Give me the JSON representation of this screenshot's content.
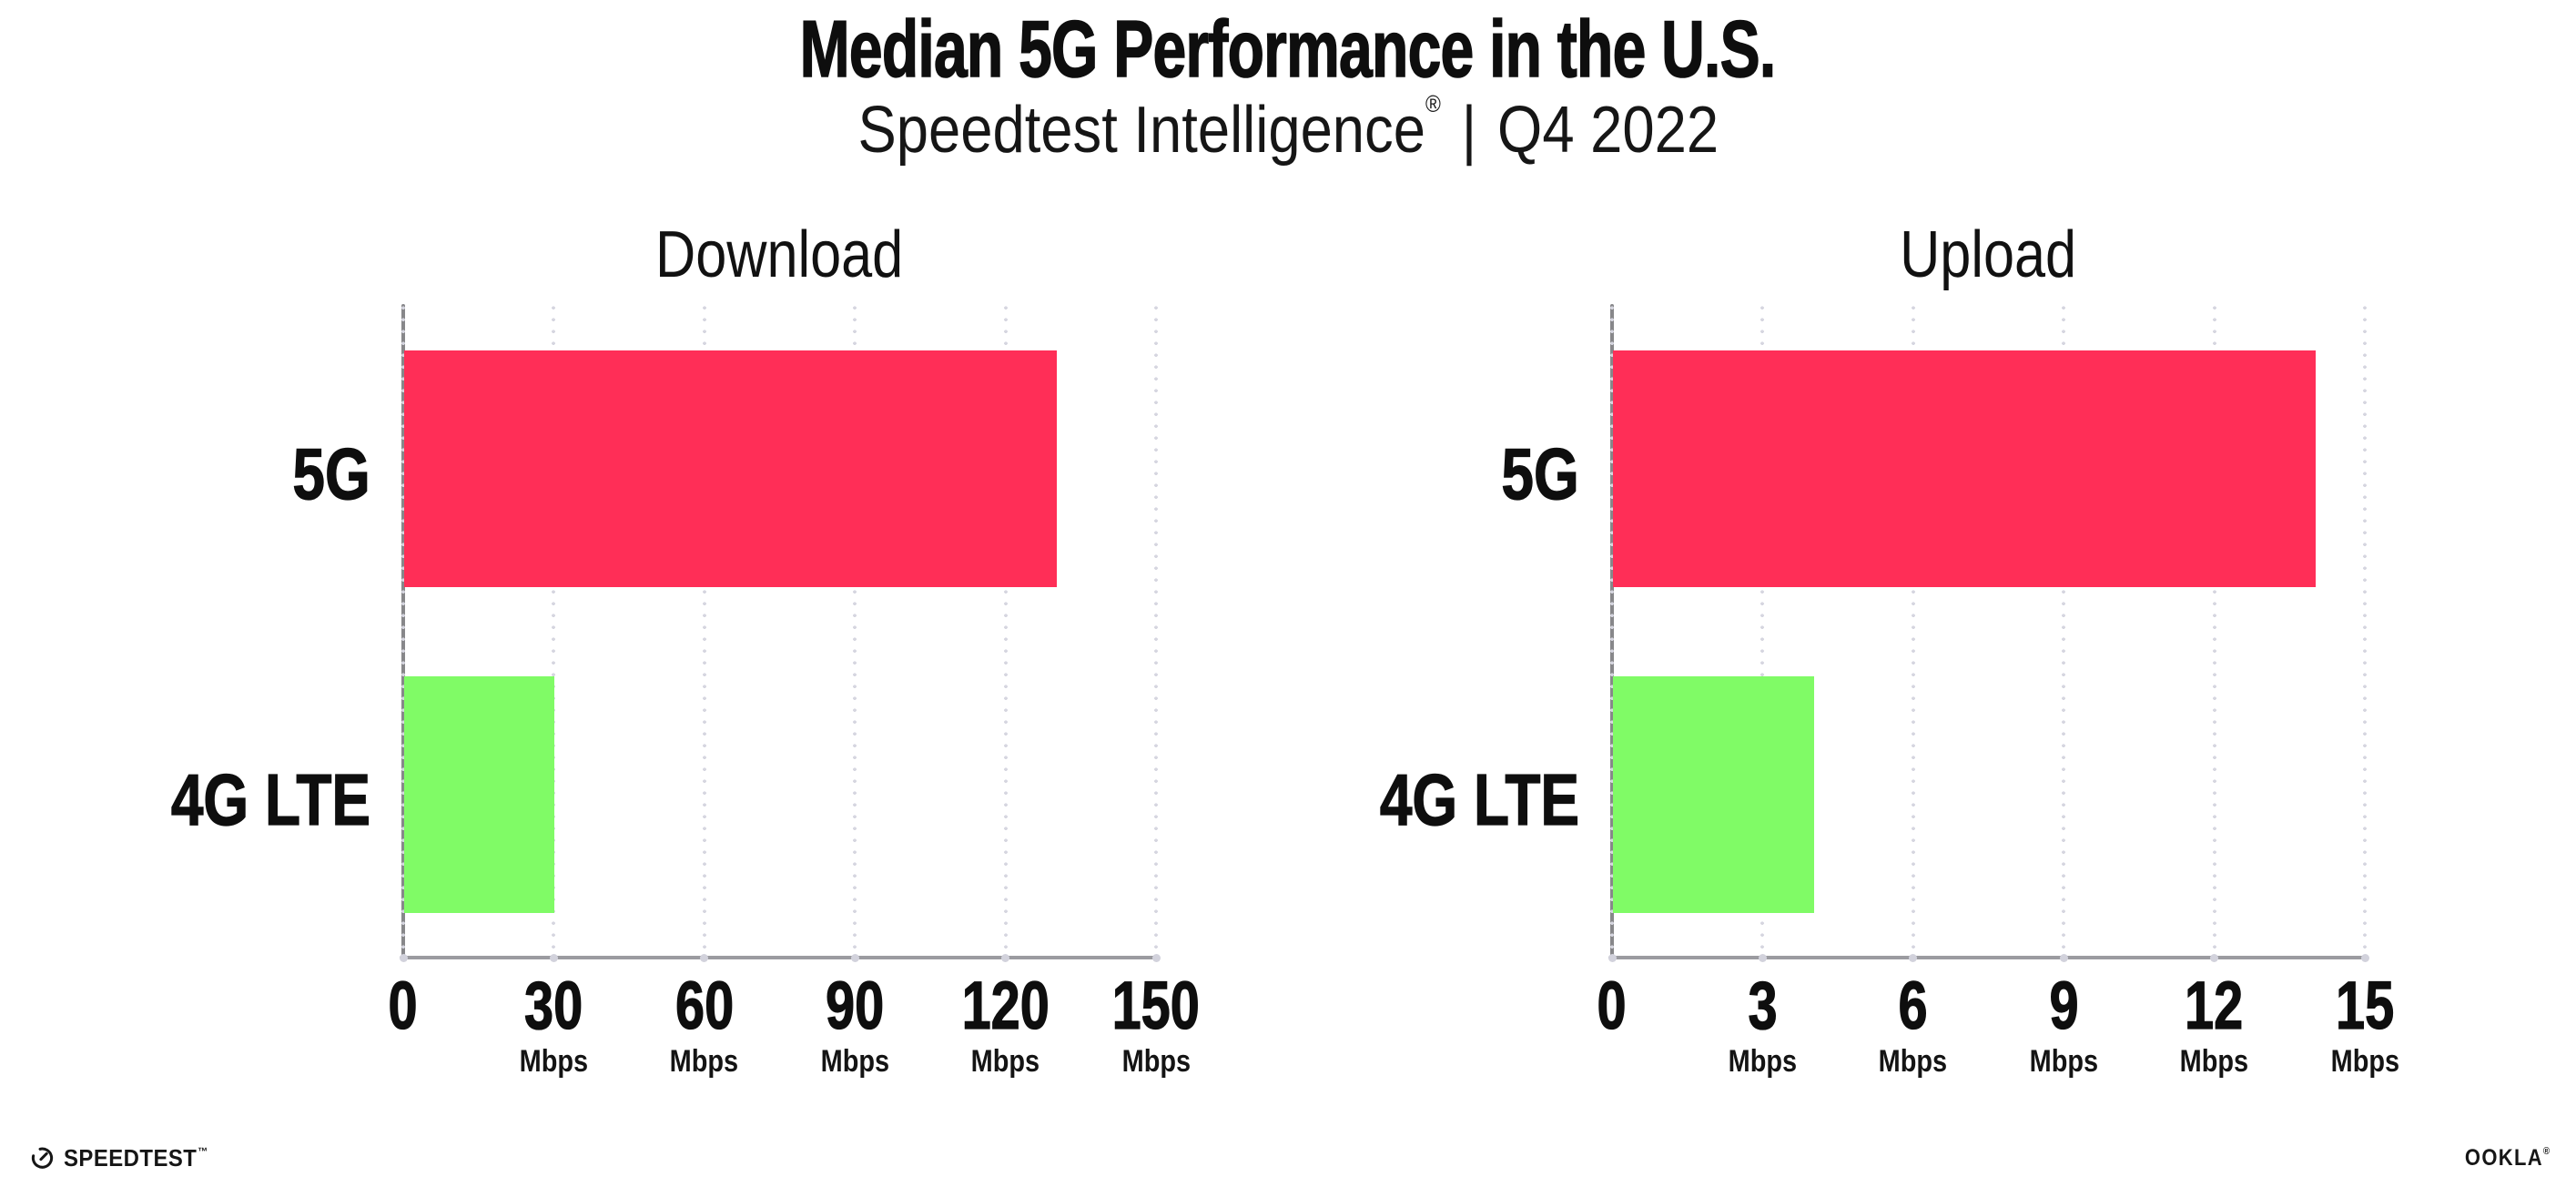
{
  "header": {
    "title": "Median 5G Performance in the U.S.",
    "subtitle_brand": "Speedtest Intelligence",
    "subtitle_reg_mark": "®",
    "subtitle_divider": "|",
    "subtitle_period": "Q4 2022"
  },
  "chart_data": [
    {
      "type": "bar",
      "orientation": "horizontal",
      "title": "Download",
      "categories": [
        "5G",
        "4G LTE"
      ],
      "values": [
        130,
        30
      ],
      "value_unit": "Mbps",
      "xlim": [
        0,
        150
      ],
      "xticks": [
        0,
        30,
        60,
        90,
        120,
        150
      ],
      "xtick_unit_label": "Mbps",
      "bar_colors": [
        "#FF2E57",
        "#80FB66"
      ],
      "grid": "vertical-dotted",
      "legend": "none"
    },
    {
      "type": "bar",
      "orientation": "horizontal",
      "title": "Upload",
      "categories": [
        "5G",
        "4G LTE"
      ],
      "values": [
        14,
        4
      ],
      "value_unit": "Mbps",
      "xlim": [
        0,
        15
      ],
      "xticks": [
        0,
        3,
        6,
        9,
        12,
        15
      ],
      "xtick_unit_label": "Mbps",
      "bar_colors": [
        "#FF2E57",
        "#80FB66"
      ],
      "grid": "vertical-dotted",
      "legend": "none"
    }
  ],
  "footer": {
    "speedtest_logo_text": "SPEEDTEST",
    "speedtest_trademark": "™",
    "ookla_logo_text": "OOKLA",
    "ookla_reg_mark": "®"
  },
  "colors": {
    "background": "#ffffff",
    "text": "#111111",
    "bar_5g": "#FF2E57",
    "bar_4g_lte": "#80FB66",
    "axis_spine": "#8a8a8c",
    "grid_dot": "#d6d6e0"
  }
}
